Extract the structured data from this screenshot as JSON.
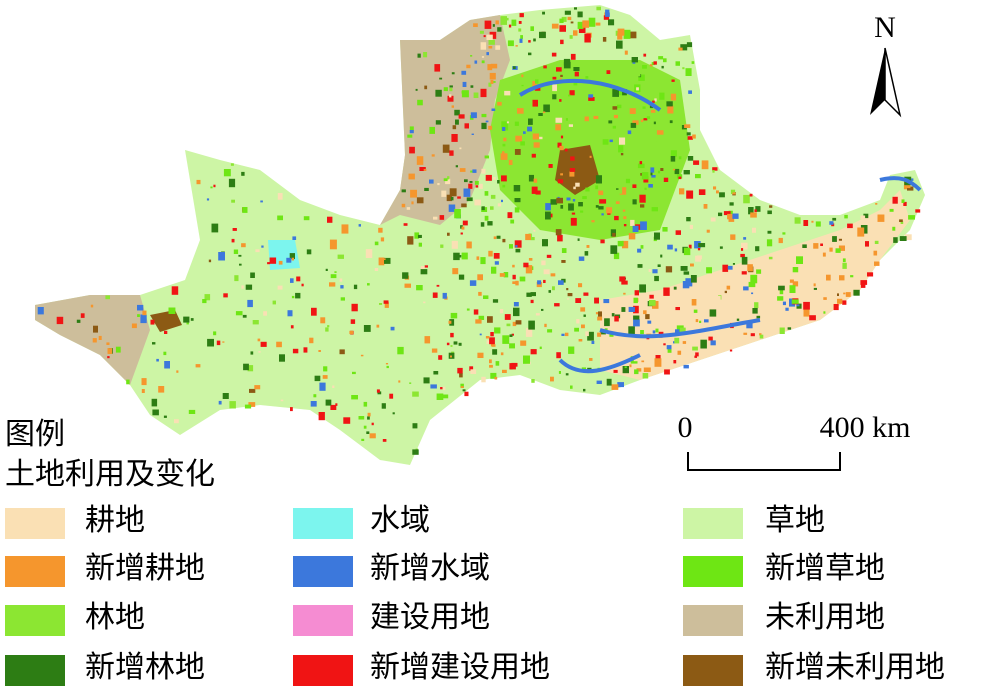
{
  "north": "N",
  "scale": {
    "start": "0",
    "end": "400 km"
  },
  "legend": {
    "title": "图例",
    "subtitle": "土地利用及变化",
    "items": [
      {
        "label": "耕地",
        "color": "#fae0b4"
      },
      {
        "label": "新增耕地",
        "color": "#f5962d"
      },
      {
        "label": "林地",
        "color": "#8ce632"
      },
      {
        "label": "新增林地",
        "color": "#2d7d14"
      },
      {
        "label": "水域",
        "color": "#7cf5ee"
      },
      {
        "label": "新增水域",
        "color": "#3c78dc"
      },
      {
        "label": "建设用地",
        "color": "#f58cd2"
      },
      {
        "label": "新增建设用地",
        "color": "#f01414"
      },
      {
        "label": "草地",
        "color": "#cdf5a5"
      },
      {
        "label": "新增草地",
        "color": "#6ee614"
      },
      {
        "label": "未利用地",
        "color": "#cdbe9b"
      },
      {
        "label": "新增未利用地",
        "color": "#8c5a14"
      }
    ]
  }
}
